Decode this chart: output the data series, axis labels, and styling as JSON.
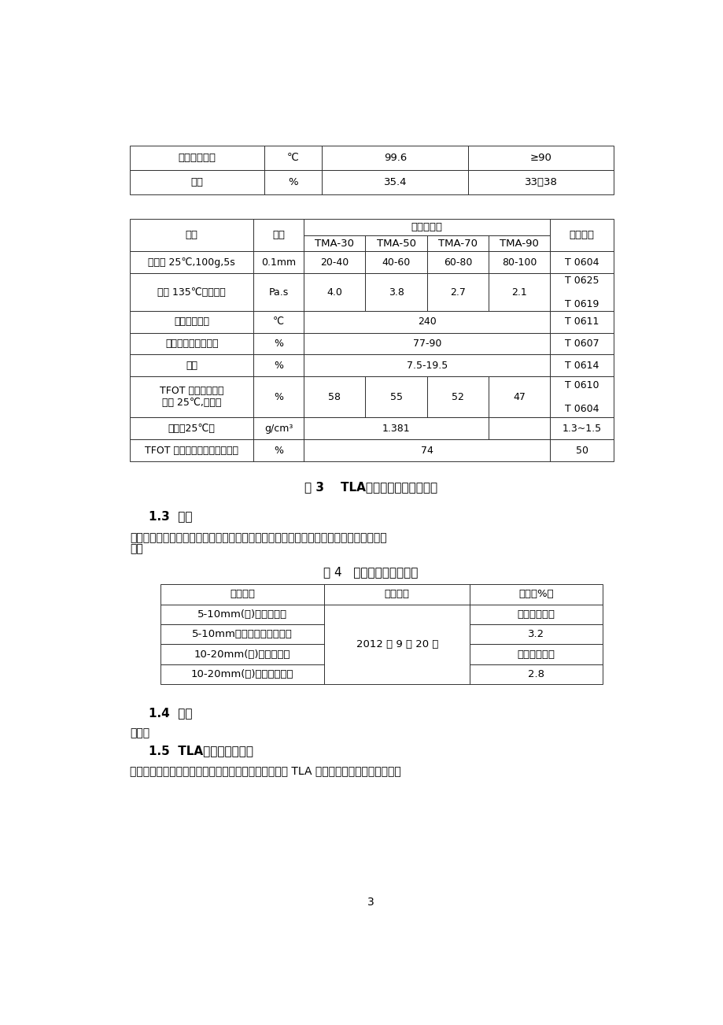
{
  "bg_color": "#ffffff",
  "table1_rows": [
    [
      "软化点不小于",
      "℃",
      "99.6",
      "≥90"
    ],
    [
      "灰分",
      "%",
      "35.4",
      "33～38"
    ]
  ],
  "table2_rows": [
    [
      "针入度 25℃,100g,5s",
      "0.1mm",
      "20-40",
      "40-60",
      "60-80",
      "80-100",
      "T 0604"
    ],
    [
      "粘度 135℃，不大于",
      "Pa.s",
      "4.0",
      "3.8",
      "2.7",
      "2.1",
      "T 0625\n\nT 0619"
    ],
    [
      "闪点。不小于",
      "℃",
      "240",
      "",
      "",
      "",
      "T 0611"
    ],
    [
      "溶解度（三氯乙烯）",
      "%",
      "77-90",
      "",
      "",
      "",
      "T 0607"
    ],
    [
      "灰分",
      "%",
      "7.5-19.5",
      "",
      "",
      "",
      "T 0614"
    ],
    [
      "TFOT 后残留物针入\n度比 25℃,不小于",
      "%",
      "58",
      "55",
      "52",
      "47",
      "T 0610\n\nT 0604"
    ],
    [
      "密度（25℃）",
      "g/cm³",
      "merged_1381",
      "",
      "",
      "",
      "1.3~1.5"
    ],
    [
      "TFOT 后残留针入度比、不小于",
      "%",
      "74",
      "",
      "",
      "",
      "50"
    ]
  ],
  "caption2": "表 3    TLA改性氥青质量技术要求",
  "section13_title": "1.3  集料",
  "section13_text1": "本研究石料均用自产于重庆中梁山的石灰岩、级配、压碎値、针片状含量等均满足规范要",
  "section13_text2": "求。",
  "table3_title": "表 4   集料试验检测情况表",
  "table3_headers": [
    "试验项目",
    "检测日期",
    "含量（%）"
  ],
  "table3_rows": [
    [
      "5-10mm(小)石灰岩级配",
      "满足设计要求"
    ],
    [
      "5-10mm（小）石灰岩针片状",
      "3.2"
    ],
    [
      "10-20mm(大)石灰岩级配",
      "满足设计要求"
    ],
    [
      "10-20mm(大)石灰岩针片状",
      "2.8"
    ]
  ],
  "table3_date": "2012 年 9 月 20 日",
  "section14_title": "1.4  填料",
  "section14_text": "填料：",
  "section15_title": "1.5  TLA改性氥青的制备",
  "section15_text": "参考国内外有关的研究成果，在实验室按以下方法制备 TLA 改性氥青：分别预热基质氥青",
  "page_number": "3"
}
